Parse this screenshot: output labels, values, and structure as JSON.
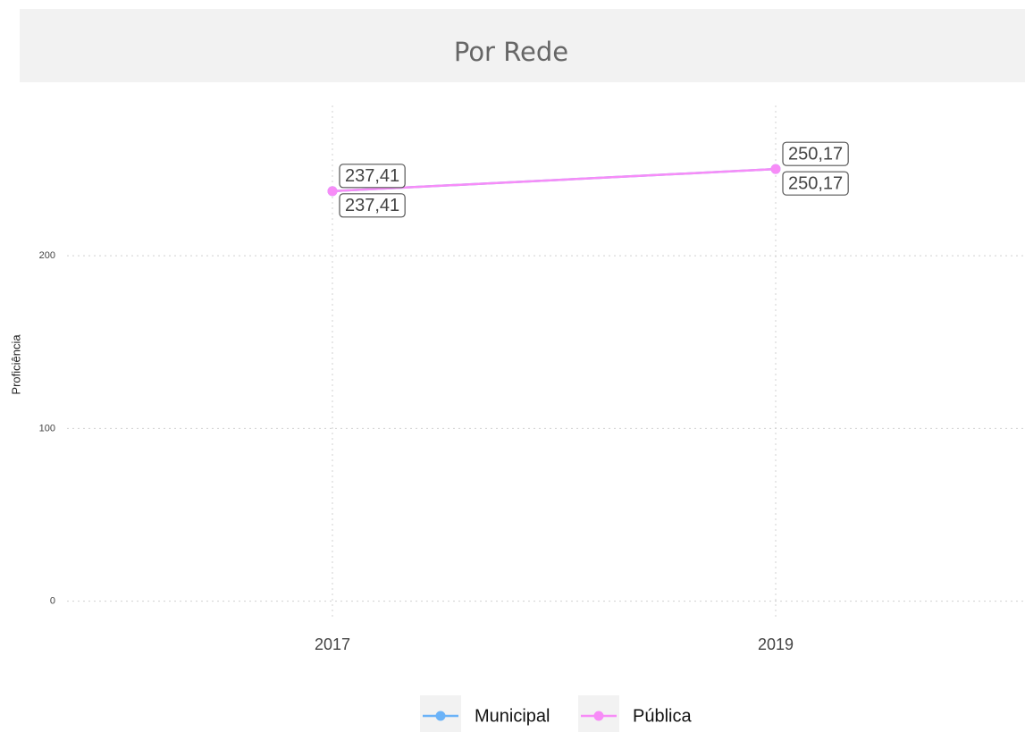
{
  "chart_data": {
    "type": "line",
    "title": "Por Rede",
    "y_label": "Proficiência",
    "categories": [
      "2017",
      "2019"
    ],
    "series": [
      {
        "name": "Municipal",
        "color": "#6bb3f8",
        "values": [
          237.41,
          250.17
        ],
        "value_labels": [
          "237,41",
          "250,17"
        ]
      },
      {
        "name": "Pública",
        "color": "#f78cf7",
        "values": [
          237.41,
          250.17
        ],
        "value_labels": [
          "237,41",
          "250,17"
        ]
      }
    ],
    "ylim": [
      -9,
      287
    ],
    "yticks": [
      0,
      100,
      200
    ],
    "grid": true,
    "legend": "bottom"
  }
}
